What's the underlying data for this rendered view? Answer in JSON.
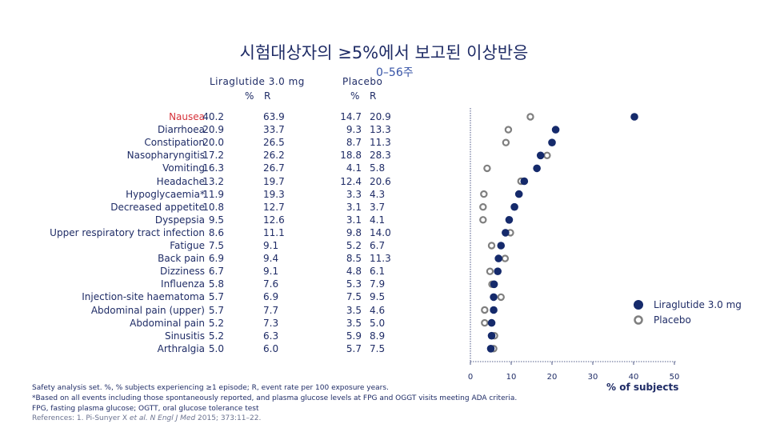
{
  "title": "시험대상자의 ≥5%에서 보고된 이상반응",
  "subtitle": "0–56주",
  "columns": {
    "liraglutide": "Liraglutide 3.0 mg",
    "placebo": "Placebo",
    "pct": "%",
    "rate": "R"
  },
  "legend": {
    "liraglutide": "Liraglutide 3.0 mg",
    "placebo": "Placebo"
  },
  "footnotes": {
    "line1": "Safety analysis set. %, % subjects experiencing ≥1 episode; R, event rate per 100 exposure years.",
    "line2": "*Based on all events including those spontaneously reported, and plasma glucose levels at FPG and OGGT visits meeting ADA criteria.",
    "line3": "FPG, fasting plasma glucose; OGTT, oral glucose tolerance test",
    "line4_prefix": "References: 1. Pi-Sunyer X ",
    "line4_ital": "et al. N Engl J Med",
    "line4_suffix": " 2015; 373:11–22."
  },
  "colors": {
    "liraglutide": "#152a6b",
    "placebo": "#7f7f7f",
    "text": "#1f2c66",
    "red": "#d6323a"
  },
  "chart_data": {
    "type": "scatter",
    "title": "시험대상자의 ≥5%에서 보고된 이상반응",
    "subtitle": "0–56주",
    "xlabel": "% of subjects",
    "xlim": [
      0,
      50
    ],
    "xticks": [
      0,
      10,
      20,
      30,
      40,
      50
    ],
    "legend_position": "right",
    "categories": [
      "Nausea",
      "Diarrhoea",
      "Constipation",
      "Nasopharyngitis",
      "Vomiting",
      "Headache",
      "Hypoglycaemia*",
      "Decreased appetite",
      "Dyspepsia",
      "Upper respiratory tract infection",
      "Fatigue",
      "Back pain",
      "Dizziness",
      "Influenza",
      "Injection-site haematoma",
      "Abdominal pain (upper)",
      "Abdominal pain",
      "Sinusitis",
      "Arthralgia"
    ],
    "series": [
      {
        "name": "Liraglutide 3.0 mg",
        "pct": [
          "40.2",
          "20.9",
          "20.0",
          "17.2",
          "16.3",
          "13.2",
          "11.9",
          "10.8",
          "9.5",
          "8.6",
          "7.5",
          "6.9",
          "6.7",
          "5.8",
          "5.7",
          "5.7",
          "5.2",
          "5.2",
          "5.0"
        ],
        "rate": [
          "63.9",
          "33.7",
          "26.5",
          "26.2",
          "26.7",
          "19.7",
          "19.3",
          "12.7",
          "12.6",
          "11.1",
          "9.1",
          "9.4",
          "9.1",
          "7.6",
          "6.9",
          "7.7",
          "7.3",
          "6.3",
          "6.0"
        ]
      },
      {
        "name": "Placebo",
        "pct": [
          "14.7",
          "9.3",
          "8.7",
          "18.8",
          "4.1",
          "12.4",
          "3.3",
          "3.1",
          "3.1",
          "9.8",
          "5.2",
          "8.5",
          "4.8",
          "5.3",
          "7.5",
          "3.5",
          "3.5",
          "5.9",
          "5.7"
        ],
        "rate": [
          "20.9",
          "13.3",
          "11.3",
          "28.3",
          "5.8",
          "20.6",
          "4.3",
          "3.7",
          "4.1",
          "14.0",
          "6.7",
          "11.3",
          "6.1",
          "7.9",
          "9.5",
          "4.6",
          "5.0",
          "8.9",
          "7.5"
        ]
      }
    ]
  }
}
